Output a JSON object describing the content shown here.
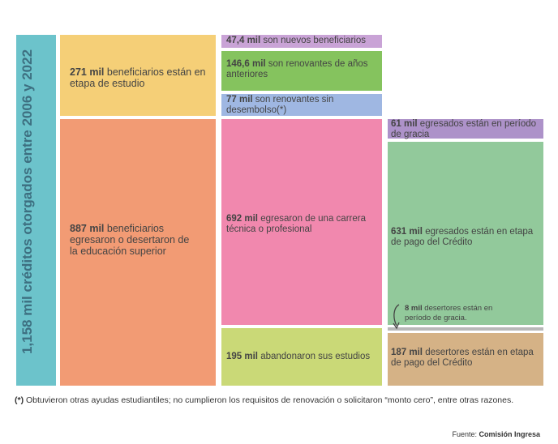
{
  "total": {
    "text": "1,158 mil créditos otorgados entre 2006 y 2022"
  },
  "columns": {
    "col1": [
      {
        "bold": "271 mil",
        "text": " beneficiarios están en etapa de estudio",
        "color": "#f5cf77"
      },
      {
        "bold": "887 mil",
        "text": " beneficiarios egresaron o desertaron de la educación superior",
        "color": "#f29b74"
      }
    ],
    "col2": [
      {
        "bold": "47,4 mil",
        "text": " son nuevos beneficiarios",
        "color": "#c9a3d6"
      },
      {
        "bold": "146,6 mil",
        "text": " son renovantes de años anteriores",
        "color": "#85c35e"
      },
      {
        "bold": "77 mil",
        "text": " son renovantes sin desembolso(*)",
        "color": "#9fb7e2"
      },
      {
        "bold": "692 mil",
        "text": " egresaron de una carrera técnica o profesional",
        "color": "#f188ae"
      },
      {
        "bold": "195 mil",
        "text": " abandonaron sus estudios",
        "color": "#cad977"
      }
    ],
    "col3": [
      {
        "bold": "61 mil",
        "text": " egresados están en período de gracia",
        "color": "#ad92c9"
      },
      {
        "bold": "631 mil",
        "text": " egresados están en etapa de pago del Crédito",
        "color": "#92c99b"
      },
      {
        "bold": "8 mil",
        "text": " desertores están en período de gracia.",
        "color": "#b8b8b8"
      },
      {
        "bold": "187 mil",
        "text": " desertores están en etapa de pago del Crédito",
        "color": "#d5b286"
      }
    ]
  },
  "footnote": {
    "bold": "(*)",
    "text": " Obtuvieron otras ayudas estudiantiles; no cumplieron los requisitos de renovación o solicitaron “monto cero”, entre otras razones."
  },
  "source": {
    "label": "Fuente: ",
    "bold": "Comisión Ingresa"
  }
}
